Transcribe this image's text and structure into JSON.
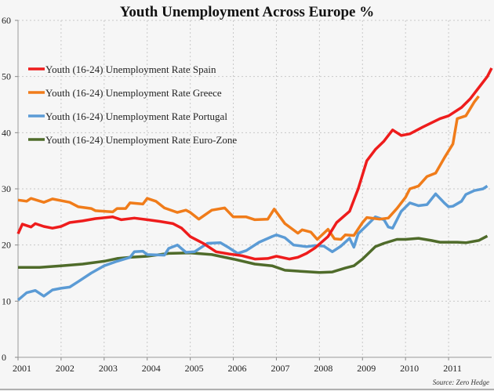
{
  "chart_data": {
    "type": "line",
    "title": "Youth Unemployment Across Europe %",
    "source": "Source: Zero Hedge",
    "xlabel": "",
    "ylabel": "",
    "xlim": [
      2001,
      2012
    ],
    "ylim": [
      0,
      60
    ],
    "x_ticks": [
      "2001",
      "2002",
      "2003",
      "2004",
      "2005",
      "2006",
      "2007",
      "2008",
      "2009",
      "2010",
      "2011"
    ],
    "y_ticks": [
      "0",
      "10",
      "20",
      "30",
      "40",
      "50",
      "60"
    ],
    "grid": true,
    "legend_position": "top-left",
    "series": [
      {
        "name": "Youth (16-24) Unemployment Rate Spain",
        "color": "#ee1c1c",
        "x": [
          2001.0,
          2001.1,
          2001.3,
          2001.4,
          2001.6,
          2001.8,
          2002.0,
          2002.2,
          2002.5,
          2002.8,
          2003.2,
          2003.4,
          2003.7,
          2004.0,
          2004.3,
          2004.6,
          2004.8,
          2005.0,
          2005.3,
          2005.6,
          2005.9,
          2006.2,
          2006.5,
          2006.8,
          2007.0,
          2007.3,
          2007.5,
          2007.7,
          2007.9,
          2008.2,
          2008.4,
          2008.7,
          2008.9,
          2009.1,
          2009.3,
          2009.5,
          2009.7,
          2009.9,
          2010.1,
          2010.4,
          2010.8,
          2011.0,
          2011.3,
          2011.5,
          2011.7,
          2011.9,
          2012.0
        ],
        "y": [
          22,
          23.7,
          23.2,
          23.8,
          23.3,
          23,
          23.3,
          24,
          24.3,
          24.7,
          25,
          24.5,
          24.8,
          24.5,
          24.2,
          23.8,
          23,
          21.5,
          20.3,
          18.8,
          18.4,
          18.1,
          17.5,
          17.6,
          18,
          17.5,
          17.8,
          18.5,
          19.5,
          21.5,
          24,
          26,
          30,
          35,
          37,
          38.5,
          40.5,
          39.5,
          39.8,
          41,
          42.5,
          43,
          44.5,
          46,
          48,
          50,
          51.5
        ]
      },
      {
        "name": "Youth (16-24) Unemployment Rate Greece",
        "color": "#f07c1a",
        "x": [
          2001.0,
          2001.2,
          2001.3,
          2001.6,
          2001.8,
          2002.2,
          2002.4,
          2002.7,
          2002.8,
          2003.2,
          2003.3,
          2003.5,
          2003.6,
          2003.9,
          2004.0,
          2004.2,
          2004.4,
          2004.7,
          2004.9,
          2005.0,
          2005.2,
          2005.5,
          2005.8,
          2006.0,
          2006.3,
          2006.5,
          2006.8,
          2006.95,
          2007.2,
          2007.5,
          2007.6,
          2007.8,
          2007.95,
          2008.2,
          2008.35,
          2008.5,
          2008.6,
          2008.8,
          2009.0,
          2009.1,
          2009.4,
          2009.6,
          2009.8,
          2010.0,
          2010.1,
          2010.3,
          2010.5,
          2010.7,
          2010.9,
          2011.1,
          2011.2,
          2011.4,
          2011.6,
          2011.7
        ],
        "y": [
          28,
          27.8,
          28.3,
          27.6,
          28.2,
          27.6,
          26.8,
          26.5,
          26.1,
          25.9,
          26.5,
          26.5,
          27.5,
          27.3,
          28.3,
          27.8,
          26.6,
          25.8,
          26.2,
          25.8,
          24.6,
          26.2,
          26.6,
          25,
          25,
          24.5,
          24.6,
          26.4,
          23.8,
          22.1,
          22.7,
          22.3,
          21,
          22.8,
          21.1,
          21,
          21.8,
          21.7,
          24,
          24.9,
          24.6,
          24.8,
          26.5,
          28.5,
          30,
          30.5,
          32.2,
          32.8,
          35.5,
          38,
          42.5,
          43,
          45.5,
          46.5
        ]
      },
      {
        "name": "Youth (16-24) Unemployment Rate Portugal",
        "color": "#5b9bd5",
        "x": [
          2001.0,
          2001.2,
          2001.4,
          2001.6,
          2001.8,
          2002.0,
          2002.2,
          2002.4,
          2002.7,
          2003.0,
          2003.3,
          2003.6,
          2003.7,
          2003.9,
          2004.0,
          2004.4,
          2004.5,
          2004.7,
          2004.9,
          2005.1,
          2005.4,
          2005.7,
          2005.9,
          2006.1,
          2006.3,
          2006.6,
          2006.9,
          2007.0,
          2007.2,
          2007.4,
          2007.7,
          2007.9,
          2008.1,
          2008.3,
          2008.5,
          2008.7,
          2008.8,
          2008.9,
          2009.1,
          2009.3,
          2009.5,
          2009.6,
          2009.7,
          2009.9,
          2010.1,
          2010.3,
          2010.5,
          2010.7,
          2010.9,
          2011.0,
          2011.1,
          2011.3,
          2011.4,
          2011.6,
          2011.8,
          2011.9
        ],
        "y": [
          10.2,
          11.5,
          11.9,
          10.9,
          12,
          12.3,
          12.5,
          13.5,
          15,
          16.3,
          17.1,
          17.8,
          18.8,
          18.9,
          18.3,
          18.2,
          19.4,
          20,
          18.7,
          18.8,
          20.3,
          20.4,
          19.5,
          18.5,
          19,
          20.5,
          21.5,
          21.8,
          21.3,
          20,
          19.7,
          19.9,
          19.8,
          18.8,
          19.8,
          21.2,
          19.6,
          22,
          23.5,
          25,
          24.5,
          23.2,
          23,
          26,
          27.5,
          27,
          27.2,
          29.1,
          27.5,
          26.8,
          26.9,
          27.8,
          29,
          29.7,
          30,
          30.5
        ]
      },
      {
        "name": "Youth (16-24) Unemployment Rate Euro-Zone",
        "color": "#4f6b2a",
        "x": [
          2001.0,
          2001.5,
          2002.0,
          2002.5,
          2003.0,
          2003.3,
          2003.6,
          2004.0,
          2004.5,
          2005.0,
          2005.5,
          2006.0,
          2006.5,
          2006.9,
          2007.2,
          2007.6,
          2008.0,
          2008.3,
          2008.6,
          2008.8,
          2009.0,
          2009.3,
          2009.5,
          2009.8,
          2010.0,
          2010.3,
          2010.6,
          2010.8,
          2011.2,
          2011.4,
          2011.7,
          2011.9
        ],
        "y": [
          16,
          16,
          16.3,
          16.6,
          17.1,
          17.6,
          17.8,
          18,
          18.5,
          18.6,
          18.3,
          17.5,
          16.6,
          16.3,
          15.5,
          15.3,
          15.1,
          15.2,
          15.9,
          16.3,
          17.5,
          19.7,
          20.3,
          21,
          21,
          21.2,
          20.8,
          20.5,
          20.5,
          20.4,
          20.8,
          21.6
        ]
      }
    ]
  }
}
